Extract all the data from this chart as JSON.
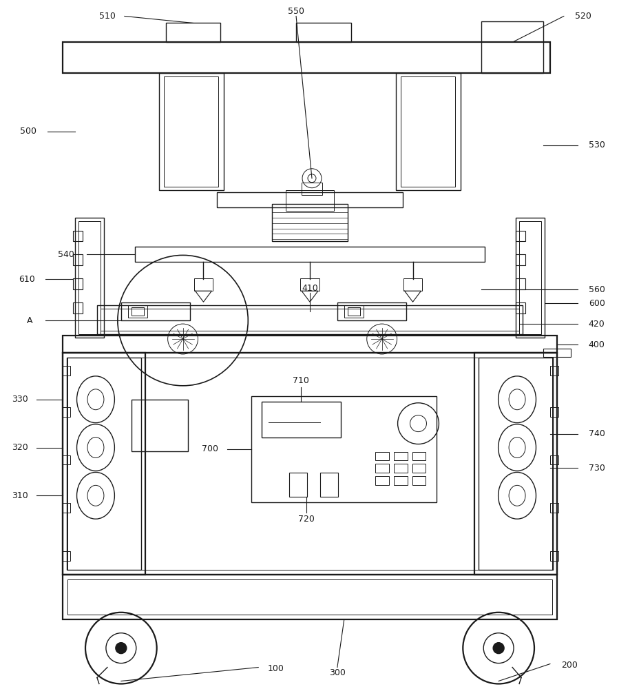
{
  "bg_color": "#ffffff",
  "line_color": "#1a1a1a",
  "lw": 1.0,
  "lw_thick": 1.6,
  "lw_thin": 0.7,
  "label_fs": 9
}
